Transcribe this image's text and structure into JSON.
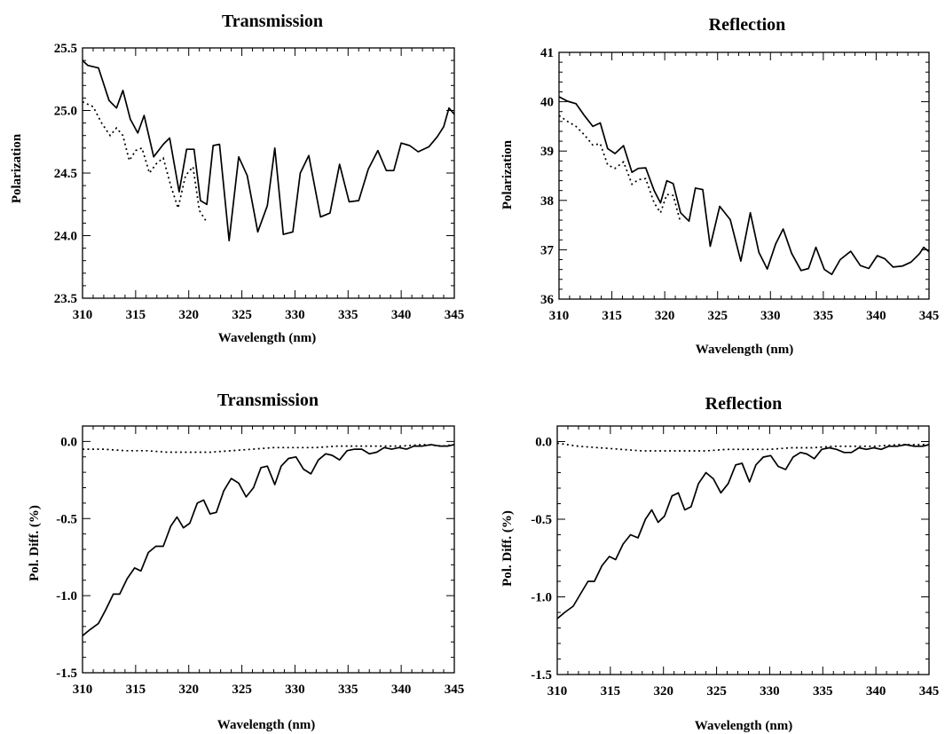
{
  "chart_data": [
    {
      "type": "line",
      "title": "Transmission",
      "xlabel": "Wavelength (nm)",
      "ylabel": "Polarization",
      "xlim": [
        310,
        345
      ],
      "ylim": [
        23.5,
        25.5
      ],
      "xticks": [
        310,
        315,
        320,
        325,
        330,
        335,
        340,
        345
      ],
      "xtick_labels": [
        "310",
        "315",
        "320",
        "325",
        "330",
        "335",
        "340",
        "345"
      ],
      "yticks": [
        23.5,
        24.0,
        24.5,
        25.0,
        25.5
      ],
      "ytick_labels": [
        "23.5",
        "24.0",
        "24.5",
        "25.0",
        "25.5"
      ],
      "grid": false,
      "series": [
        {
          "style": "solid",
          "x": [
            310,
            310.5,
            311.5,
            312.5,
            313.2,
            313.8,
            314.5,
            315.2,
            315.8,
            316.7,
            317.6,
            318.2,
            319.1,
            319.8,
            320.5,
            321.1,
            321.7,
            322.3,
            322.9,
            323.8,
            324.7,
            325.5,
            326.5,
            327.4,
            328.1,
            328.9,
            329.8,
            330.5,
            331.3,
            332.4,
            333.3,
            334.2,
            335.1,
            336,
            336.9,
            337.8,
            338.6,
            339.3,
            340,
            340.8,
            341.6,
            342.6,
            343.4,
            344,
            344.5,
            345
          ],
          "y": [
            25.4,
            25.36,
            25.34,
            25.08,
            25.02,
            25.16,
            24.93,
            24.82,
            24.96,
            24.63,
            24.73,
            24.78,
            24.35,
            24.69,
            24.69,
            24.28,
            24.25,
            24.72,
            24.73,
            23.96,
            24.63,
            24.48,
            24.03,
            24.24,
            24.7,
            24.01,
            24.03,
            24.5,
            24.64,
            24.15,
            24.18,
            24.57,
            24.27,
            24.28,
            24.53,
            24.68,
            24.52,
            24.52,
            24.74,
            24.72,
            24.67,
            24.71,
            24.79,
            24.87,
            25.02,
            24.97
          ]
        },
        {
          "style": "dotted",
          "x": [
            310,
            311,
            311.8,
            312.6,
            313.2,
            313.8,
            314.4,
            315,
            315.6,
            316.3,
            317,
            317.6,
            318.3,
            319,
            319.7,
            320.4,
            321,
            321.6
          ],
          "y": [
            25.07,
            25.03,
            24.9,
            24.8,
            24.86,
            24.8,
            24.6,
            24.68,
            24.7,
            24.5,
            24.58,
            24.62,
            24.4,
            24.22,
            24.48,
            24.55,
            24.2,
            24.12
          ]
        }
      ]
    },
    {
      "type": "line",
      "title": "Reflection",
      "xlabel": "Wavelength (nm)",
      "ylabel": "Polarization",
      "xlim": [
        310,
        345
      ],
      "ylim": [
        36,
        41
      ],
      "xticks": [
        310,
        315,
        320,
        325,
        330,
        335,
        340,
        345
      ],
      "xtick_labels": [
        "310",
        "315",
        "320",
        "325",
        "330",
        "335",
        "340",
        "345"
      ],
      "yticks": [
        36,
        37,
        38,
        39,
        40,
        41
      ],
      "ytick_labels": [
        "36",
        "37",
        "38",
        "39",
        "40",
        "41"
      ],
      "grid": false,
      "series": [
        {
          "style": "solid",
          "x": [
            310,
            310.8,
            311.6,
            312.4,
            313.2,
            313.9,
            314.6,
            315.3,
            316.1,
            316.9,
            317.5,
            318.2,
            319,
            319.6,
            320.2,
            320.8,
            321.5,
            322.3,
            322.9,
            323.6,
            324.3,
            325.2,
            326.2,
            327.2,
            328.1,
            328.9,
            329.7,
            330.5,
            331.2,
            332,
            332.9,
            333.6,
            334.3,
            335.1,
            335.8,
            336.6,
            337.6,
            338.5,
            339.3,
            340.1,
            340.8,
            341.6,
            342.5,
            343.3,
            344.1,
            344.5,
            345
          ],
          "y": [
            40.1,
            40.01,
            39.96,
            39.72,
            39.5,
            39.57,
            39.05,
            38.95,
            39.11,
            38.57,
            38.65,
            38.66,
            38.2,
            37.95,
            38.4,
            38.34,
            37.75,
            37.58,
            38.25,
            38.22,
            37.07,
            37.88,
            37.61,
            36.77,
            37.75,
            36.95,
            36.61,
            37.12,
            37.42,
            36.93,
            36.58,
            36.62,
            37.05,
            36.6,
            36.5,
            36.8,
            36.97,
            36.68,
            36.62,
            36.88,
            36.82,
            36.65,
            36.67,
            36.75,
            36.92,
            37.05,
            36.96
          ]
        },
        {
          "style": "dotted",
          "x": [
            310,
            310.8,
            311.6,
            312.4,
            313.2,
            313.9,
            314.6,
            315.3,
            316.1,
            316.9,
            317.5,
            318.2,
            319,
            319.6,
            320.2,
            320.8,
            321.5
          ],
          "y": [
            39.72,
            39.6,
            39.5,
            39.33,
            39.12,
            39.15,
            38.72,
            38.65,
            38.78,
            38.33,
            38.42,
            38.44,
            37.95,
            37.75,
            38.12,
            38.1,
            37.55
          ]
        }
      ]
    },
    {
      "type": "line",
      "title": "Transmission",
      "xlabel": "Wavelength (nm)",
      "ylabel": "Pol. Diff. (%)",
      "xlim": [
        310,
        345
      ],
      "ylim": [
        -1.5,
        0.1
      ],
      "xticks": [
        310,
        315,
        320,
        325,
        330,
        335,
        340,
        345
      ],
      "xtick_labels": [
        "310",
        "315",
        "320",
        "325",
        "330",
        "335",
        "340",
        "345"
      ],
      "yticks": [
        -1.5,
        -1.0,
        -0.5,
        0.0
      ],
      "ytick_labels": [
        "-1.5",
        "-1.0",
        "-0.5",
        "0.0"
      ],
      "grid": false,
      "series": [
        {
          "style": "solid",
          "x": [
            310,
            310.7,
            311.5,
            312.2,
            312.9,
            313.5,
            314.2,
            314.9,
            315.5,
            316.2,
            316.9,
            317.6,
            318.3,
            318.9,
            319.5,
            320.1,
            320.8,
            321.4,
            322,
            322.6,
            323.3,
            324,
            324.7,
            325.4,
            326.1,
            326.8,
            327.4,
            328.1,
            328.7,
            329.4,
            330.1,
            330.8,
            331.5,
            332.2,
            332.9,
            333.5,
            334.2,
            334.9,
            335.6,
            336.3,
            337,
            337.7,
            338.4,
            339.1,
            339.8,
            340.5,
            341.2,
            342,
            342.8,
            343.6,
            344.4,
            345
          ],
          "y": [
            -1.26,
            -1.22,
            -1.18,
            -1.09,
            -0.99,
            -0.99,
            -0.89,
            -0.82,
            -0.84,
            -0.72,
            -0.68,
            -0.68,
            -0.55,
            -0.49,
            -0.56,
            -0.53,
            -0.4,
            -0.38,
            -0.47,
            -0.46,
            -0.32,
            -0.24,
            -0.27,
            -0.36,
            -0.3,
            -0.17,
            -0.16,
            -0.28,
            -0.16,
            -0.11,
            -0.1,
            -0.18,
            -0.21,
            -0.12,
            -0.08,
            -0.09,
            -0.12,
            -0.06,
            -0.05,
            -0.05,
            -0.08,
            -0.07,
            -0.04,
            -0.05,
            -0.04,
            -0.05,
            -0.03,
            -0.03,
            -0.02,
            -0.03,
            -0.03,
            -0.02
          ]
        },
        {
          "style": "dotted",
          "x": [
            310,
            312,
            314,
            316,
            318,
            320,
            322,
            324,
            326,
            328,
            330,
            332,
            334,
            336,
            338,
            340,
            342,
            344,
            345
          ],
          "y": [
            -0.05,
            -0.05,
            -0.06,
            -0.06,
            -0.07,
            -0.07,
            -0.07,
            -0.06,
            -0.05,
            -0.04,
            -0.04,
            -0.04,
            -0.03,
            -0.03,
            -0.03,
            -0.03,
            -0.02,
            -0.03,
            -0.02
          ]
        }
      ]
    },
    {
      "type": "line",
      "title": "Reflection",
      "xlabel": "Wavelength (nm)",
      "ylabel": "Pol. Diff. (%)",
      "xlim": [
        310,
        345
      ],
      "ylim": [
        -1.5,
        0.1
      ],
      "xticks": [
        310,
        315,
        320,
        325,
        330,
        335,
        340,
        345
      ],
      "xtick_labels": [
        "310",
        "315",
        "320",
        "325",
        "330",
        "335",
        "340",
        "345"
      ],
      "yticks": [
        -1.5,
        -1.0,
        -0.5,
        0.0
      ],
      "ytick_labels": [
        "-1.5",
        "-1.0",
        "-0.5",
        "0.0"
      ],
      "grid": false,
      "series": [
        {
          "style": "solid",
          "x": [
            310,
            310.7,
            311.5,
            312.2,
            312.9,
            313.5,
            314.2,
            314.9,
            315.5,
            316.2,
            316.9,
            317.6,
            318.3,
            318.9,
            319.5,
            320.1,
            320.8,
            321.4,
            322,
            322.6,
            323.3,
            324,
            324.7,
            325.4,
            326.1,
            326.8,
            327.4,
            328.1,
            328.7,
            329.4,
            330.1,
            330.8,
            331.5,
            332.2,
            332.9,
            333.5,
            334.2,
            334.9,
            335.6,
            336.3,
            337,
            337.7,
            338.4,
            339.1,
            339.8,
            340.5,
            341.2,
            342,
            342.8,
            343.6,
            344.4,
            345
          ],
          "y": [
            -1.14,
            -1.1,
            -1.06,
            -0.98,
            -0.9,
            -0.9,
            -0.8,
            -0.74,
            -0.76,
            -0.66,
            -0.6,
            -0.62,
            -0.5,
            -0.44,
            -0.52,
            -0.48,
            -0.35,
            -0.33,
            -0.44,
            -0.42,
            -0.27,
            -0.2,
            -0.24,
            -0.33,
            -0.27,
            -0.15,
            -0.14,
            -0.26,
            -0.15,
            -0.1,
            -0.09,
            -0.16,
            -0.18,
            -0.1,
            -0.07,
            -0.08,
            -0.11,
            -0.05,
            -0.04,
            -0.05,
            -0.07,
            -0.07,
            -0.04,
            -0.05,
            -0.04,
            -0.05,
            -0.03,
            -0.03,
            -0.02,
            -0.03,
            -0.03,
            -0.02
          ]
        },
        {
          "style": "dotted",
          "x": [
            310,
            312,
            314,
            316,
            318,
            320,
            322,
            324,
            326,
            328,
            330,
            332,
            334,
            336,
            338,
            340,
            342,
            344,
            345
          ],
          "y": [
            -0.01,
            -0.03,
            -0.04,
            -0.05,
            -0.06,
            -0.06,
            -0.06,
            -0.06,
            -0.05,
            -0.05,
            -0.05,
            -0.04,
            -0.04,
            -0.03,
            -0.03,
            -0.03,
            -0.02,
            -0.02,
            -0.02
          ]
        }
      ]
    }
  ]
}
